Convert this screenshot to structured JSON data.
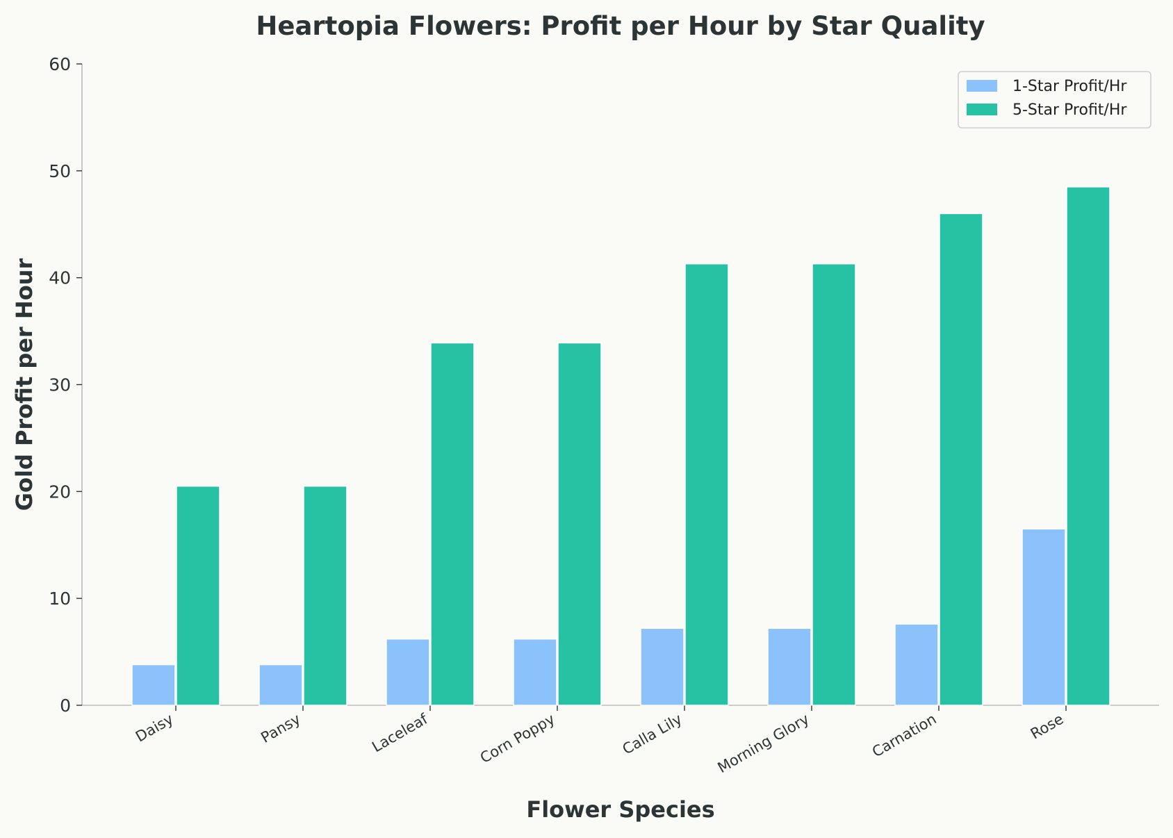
{
  "chart_data": {
    "type": "bar",
    "title": "Heartopia Flowers: Profit per Hour by Star Quality",
    "xlabel": "Flower Species",
    "ylabel": "Gold Profit per Hour",
    "categories": [
      "Daisy",
      "Pansy",
      "Laceleaf",
      "Corn Poppy",
      "Calla Lily",
      "Morning Glory",
      "Carnation",
      "Rose"
    ],
    "series": [
      {
        "name": "1-Star Profit/Hr",
        "color": "#8bc2fc",
        "values": [
          3.8,
          3.8,
          6.2,
          6.2,
          7.2,
          7.2,
          7.6,
          16.5
        ]
      },
      {
        "name": "5-Star Profit/Hr",
        "color": "#26c2a3",
        "values": [
          20.5,
          20.5,
          33.9,
          33.9,
          41.3,
          41.3,
          46.0,
          48.5
        ]
      }
    ],
    "ylim": [
      0,
      60
    ],
    "yticks": [
      0,
      10,
      20,
      30,
      40,
      50,
      60
    ],
    "grid": false,
    "legend_position": "top-right"
  }
}
